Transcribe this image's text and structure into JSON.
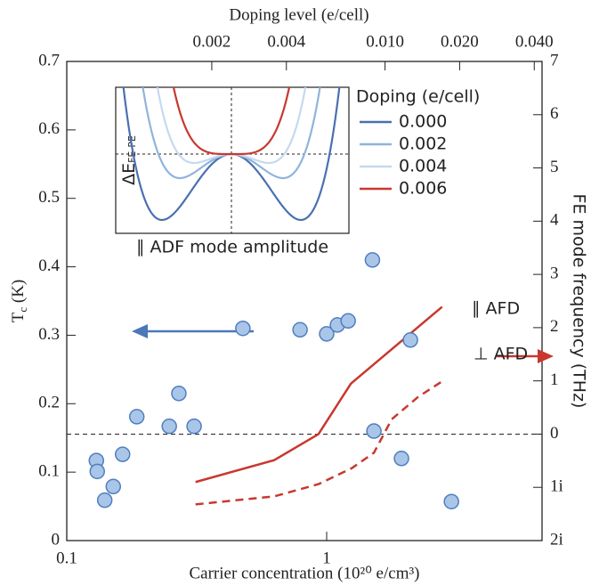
{
  "chart_data": [
    {
      "type": "scatter",
      "xlabel": "Carrier concentration (10²⁰ e/cm³)",
      "ylabel": {
        "text": "T",
        "sub": "c",
        "unit": " (K)"
      },
      "y2label": "FE mode frequency (THz)",
      "x2label": "Doping level (e/cell)",
      "xscale": "log",
      "x2scale": "log",
      "xlim": [
        0.1,
        6.74
      ],
      "xticks": [
        0.1,
        1
      ],
      "ylim": [
        0,
        0.7
      ],
      "yticks": [
        0,
        0.1,
        0.2,
        0.3,
        0.4,
        0.5,
        0.6,
        0.7
      ],
      "y2lim": [
        -2,
        7
      ],
      "y2ticks": [
        {
          "value": -2,
          "label": "2i"
        },
        {
          "value": -1,
          "label": "1i"
        },
        0,
        1,
        2,
        3,
        4,
        5,
        6,
        7
      ],
      "x2lim": [
        0.00052,
        0.043
      ],
      "x2ticks": [
        0.002,
        0.004,
        {
          "value": 0.01,
          "label": "0.010"
        },
        {
          "value": 0.02,
          "label": "0.020"
        },
        {
          "value": 0.04,
          "label": "0.040"
        }
      ],
      "points": {
        "color": "#a9c5e8",
        "edgecolor": "#4f7fbf",
        "x": [
          0.13,
          0.131,
          0.14,
          0.151,
          0.164,
          0.186,
          0.248,
          0.27,
          0.309,
          0.476,
          0.79,
          1.0,
          1.1,
          1.21,
          1.5,
          1.52,
          1.94,
          2.1,
          3.02
        ],
        "y": [
          0.117,
          0.101,
          0.059,
          0.079,
          0.126,
          0.181,
          0.167,
          0.215,
          0.167,
          0.31,
          0.308,
          0.302,
          0.315,
          0.321,
          0.41,
          0.16,
          0.12,
          0.293,
          0.057
        ]
      },
      "series": [
        {
          "name": "∥ AFD",
          "color": "#c8382e",
          "axis": "y2",
          "linestyle": "solid",
          "x": [
            0.313,
            0.628,
            0.93,
            1.24,
            2.78
          ],
          "values": [
            -0.9,
            -0.49,
            0,
            0.95,
            2.39
          ]
        },
        {
          "name": "⊥ AFD",
          "color": "#c8382e",
          "axis": "y2",
          "linestyle": "dashed",
          "x": [
            0.313,
            0.628,
            0.93,
            1.25,
            1.52,
            1.78,
            2.25,
            2.78
          ],
          "values": [
            -1.32,
            -1.17,
            -0.94,
            -0.64,
            -0.35,
            0.28,
            0.7,
            0.99
          ]
        }
      ]
    },
    {
      "type": "line",
      "xlabel": "∥ ADF mode amplitude",
      "ylabel": {
        "text": "ΔE",
        "sub": "FE-PE"
      },
      "legend_title": "Doping (e/cell)",
      "series": [
        {
          "name": "0.000",
          "color": "#4a70b0"
        },
        {
          "name": "0.002",
          "color": "#8fb4dc"
        },
        {
          "name": "0.004",
          "color": "#c6d9ee"
        },
        {
          "name": "0.006",
          "color": "#c8382e"
        }
      ]
    }
  ]
}
